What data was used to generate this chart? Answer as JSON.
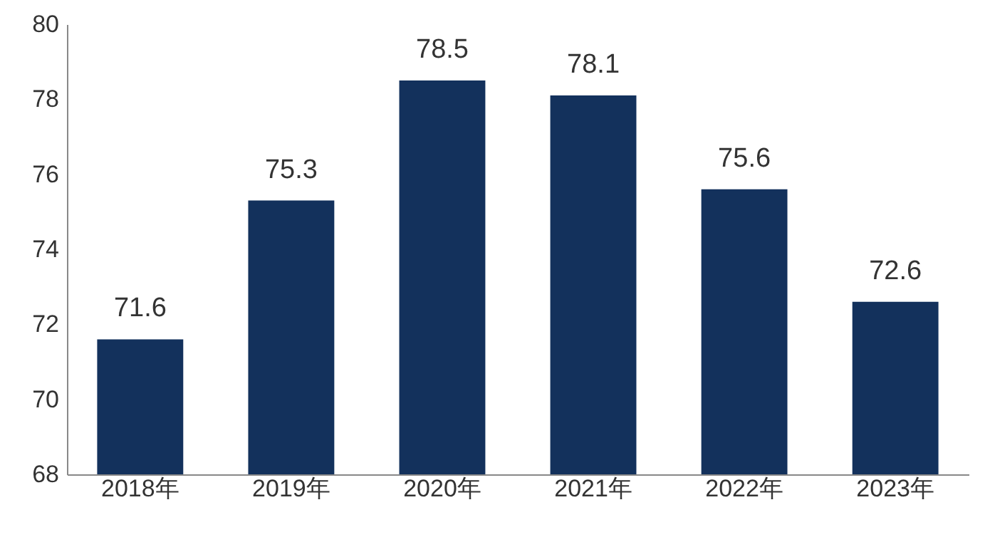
{
  "chart_data": {
    "type": "bar",
    "categories": [
      "2018年",
      "2019年",
      "2020年",
      "2021年",
      "2022年",
      "2023年"
    ],
    "values": [
      71.6,
      75.3,
      78.5,
      78.1,
      75.6,
      72.6
    ],
    "color": "#13315c",
    "ylim": [
      68,
      80
    ],
    "yticks": [
      68,
      70,
      72,
      74,
      76,
      78,
      80
    ],
    "grid": false,
    "data_labels": true
  }
}
